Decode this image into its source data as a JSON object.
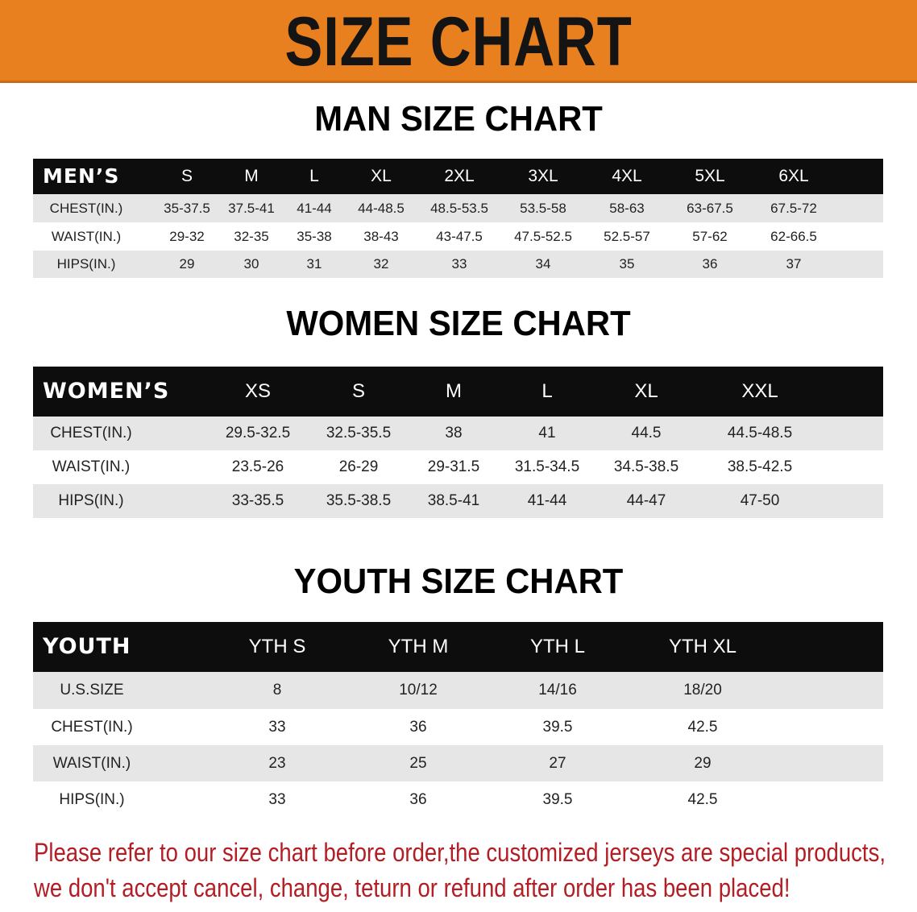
{
  "banner": {
    "title": "SIZE CHART",
    "color": "#e9801f"
  },
  "men": {
    "title": "MAN SIZE CHART",
    "header_label": "MEN’S",
    "sizes": [
      "S",
      "M",
      "L",
      "XL",
      "2XL",
      "3XL",
      "4XL",
      "5XL",
      "6XL"
    ],
    "rows": [
      {
        "label": "CHEST(IN.)",
        "values": [
          "35-37.5",
          "37.5-41",
          "41-44",
          "44-48.5",
          "48.5-53.5",
          "53.5-58",
          "58-63",
          "63-67.5",
          "67.5-72"
        ]
      },
      {
        "label": "WAIST(IN.)",
        "values": [
          "29-32",
          "32-35",
          "35-38",
          "38-43",
          "43-47.5",
          "47.5-52.5",
          "52.5-57",
          "57-62",
          "62-66.5"
        ]
      },
      {
        "label": "HIPS(IN.)",
        "values": [
          "29",
          "30",
          "31",
          "32",
          "33",
          "34",
          "35",
          "36",
          "37"
        ]
      }
    ]
  },
  "women": {
    "title": "WOMEN SIZE CHART",
    "header_label": "WOMEN’S",
    "sizes": [
      "XS",
      "S",
      "M",
      "L",
      "XL",
      "XXL"
    ],
    "rows": [
      {
        "label": "CHEST(IN.)",
        "values": [
          "29.5-32.5",
          "32.5-35.5",
          "38",
          "41",
          "44.5",
          "44.5-48.5"
        ]
      },
      {
        "label": "WAIST(IN.)",
        "values": [
          "23.5-26",
          "26-29",
          "29-31.5",
          "31.5-34.5",
          "34.5-38.5",
          "38.5-42.5"
        ]
      },
      {
        "label": "HIPS(IN.)",
        "values": [
          "33-35.5",
          "35.5-38.5",
          "38.5-41",
          "41-44",
          "44-47",
          "47-50"
        ]
      }
    ]
  },
  "youth": {
    "title": "YOUTH SIZE CHART",
    "header_label": "YOUTH",
    "sizes": [
      "YTH S",
      "YTH M",
      "YTH L",
      "YTH XL"
    ],
    "rows": [
      {
        "label": "U.S.SIZE",
        "values": [
          "8",
          "10/12",
          "14/16",
          "18/20"
        ]
      },
      {
        "label": "CHEST(IN.)",
        "values": [
          "33",
          "36",
          "39.5",
          "42.5"
        ]
      },
      {
        "label": "WAIST(IN.)",
        "values": [
          "23",
          "25",
          "27",
          "29"
        ]
      },
      {
        "label": "HIPS(IN.)",
        "values": [
          "33",
          "36",
          "39.5",
          "42.5"
        ]
      }
    ]
  },
  "notice": {
    "line1": "Please refer to our size chart before order,the customized jerseys are special products,",
    "line2": "we don't accept cancel, change, teturn or refund after order has been placed!",
    "color": "#b31d24"
  }
}
